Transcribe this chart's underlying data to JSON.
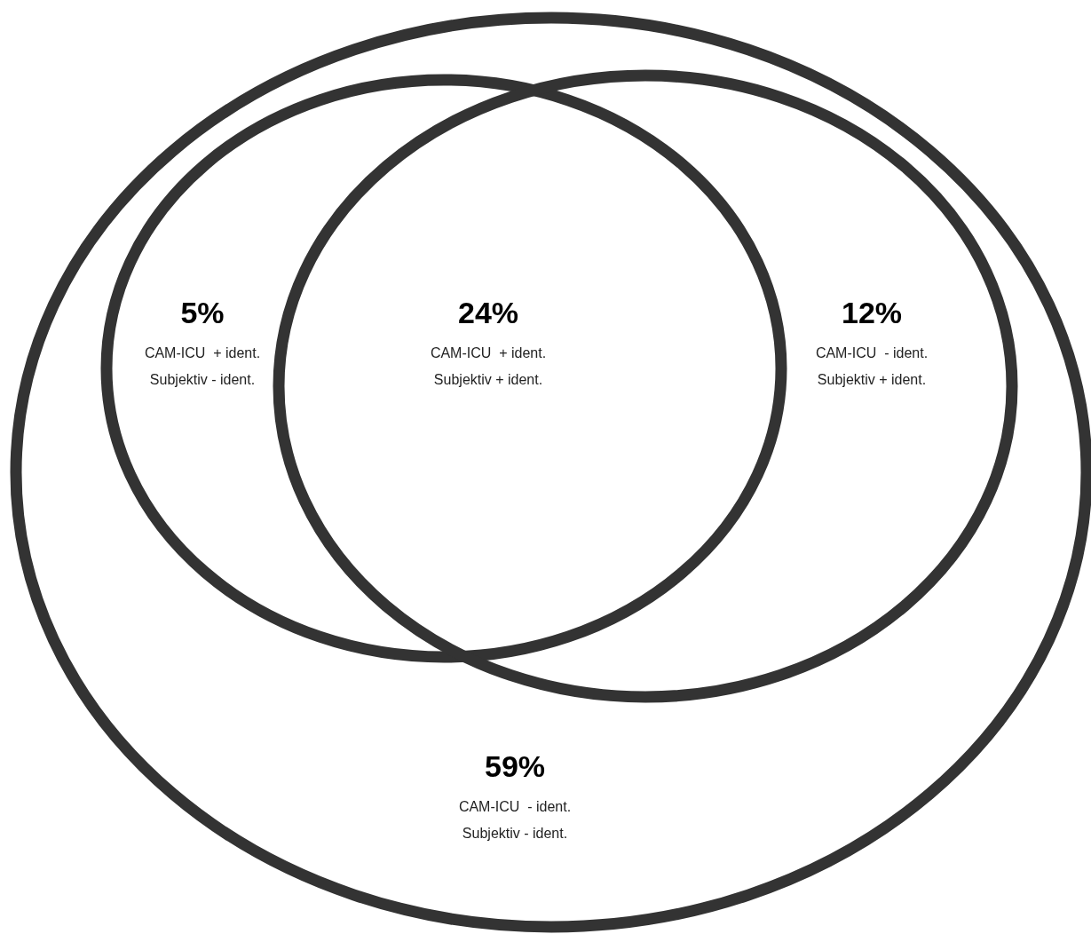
{
  "chart_data": {
    "type": "other",
    "categories": [
      "CAM-ICU  + ident.\nSubjektiv - ident.",
      "CAM-ICU  + ident.\nSubjektiv + ident.",
      "CAM-ICU  - ident.\nSubjektiv + ident.",
      "CAM-ICU  - ident.\nSubjektiv - ident."
    ],
    "values": [
      5,
      24,
      12,
      59
    ],
    "value_labels": [
      "5%",
      "24%",
      "12%",
      "59%"
    ],
    "data_labels": true
  }
}
